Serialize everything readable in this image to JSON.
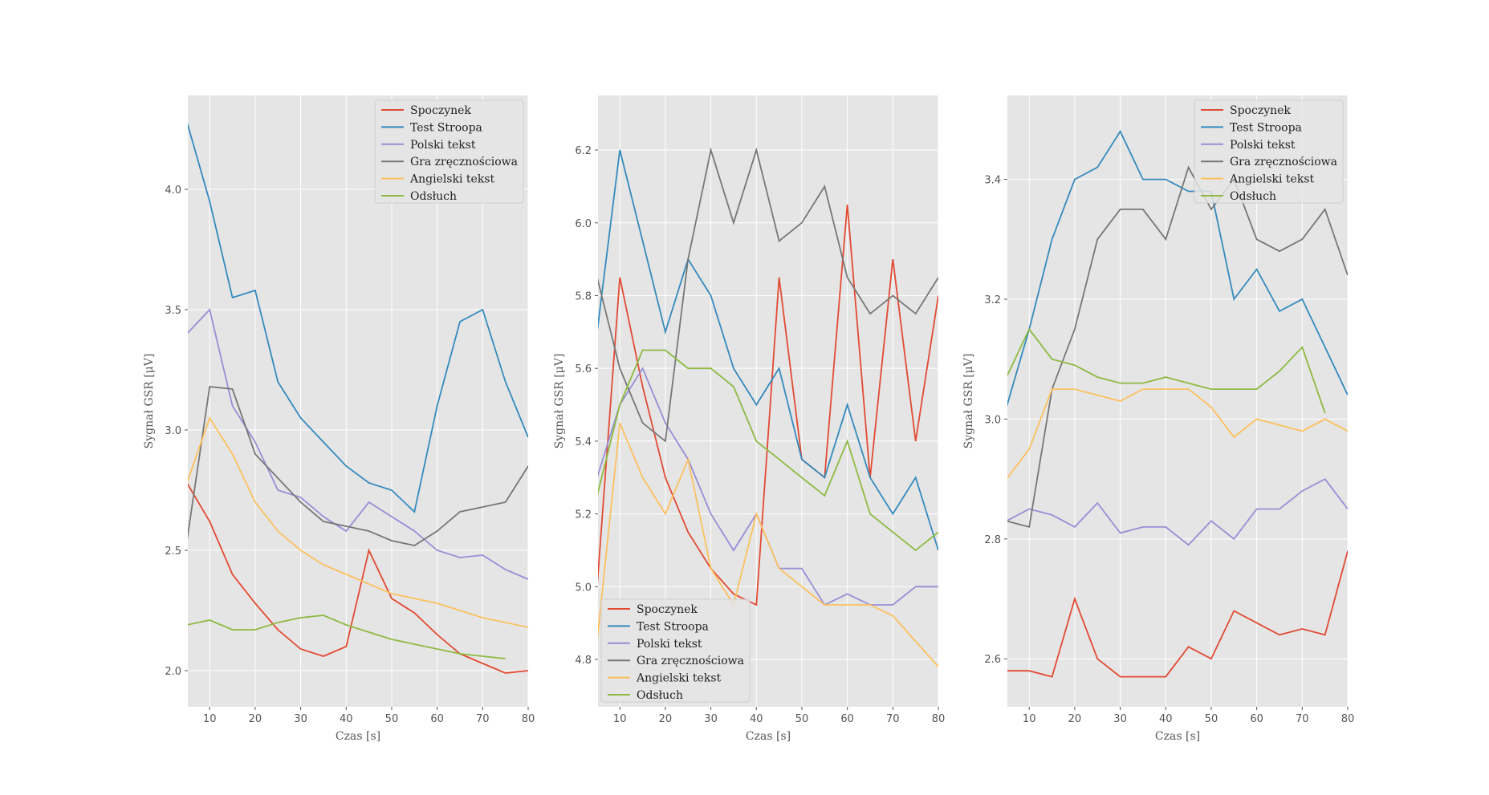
{
  "colors": [
    "#E24A33",
    "#348ABD",
    "#988ED5",
    "#777777",
    "#FBC15E",
    "#8EBA42"
  ],
  "chart_data": [
    {
      "type": "line",
      "xlabel": "Czas [s]",
      "ylabel": "Sygnał GSR [μV]",
      "xlim": [
        5.2,
        80
      ],
      "ylim": [
        1.85,
        4.39
      ],
      "xticks": [
        10,
        20,
        30,
        40,
        50,
        60,
        70,
        80
      ],
      "yticks": [
        2.0,
        2.5,
        3.0,
        3.5,
        4.0
      ],
      "ytick_labels": [
        "2.0",
        "2.5",
        "3.0",
        "3.5",
        "4.0"
      ],
      "grid": true,
      "legend": "top-right",
      "x": [
        5,
        10,
        15,
        20,
        25,
        30,
        35,
        40,
        45,
        50,
        55,
        60,
        65,
        70,
        75,
        80
      ],
      "series": [
        {
          "name": "Spoczynek",
          "values": [
            2.78,
            2.62,
            2.4,
            2.28,
            2.17,
            2.09,
            2.06,
            2.1,
            2.5,
            2.3,
            2.24,
            2.15,
            2.07,
            2.03,
            1.99,
            2.0
          ]
        },
        {
          "name": "Test Stroopa",
          "values": [
            4.28,
            3.95,
            3.55,
            3.58,
            3.2,
            3.05,
            2.95,
            2.85,
            2.78,
            2.75,
            2.66,
            3.1,
            3.45,
            3.5,
            3.2,
            2.97
          ]
        },
        {
          "name": "Polski tekst",
          "values": [
            3.4,
            3.5,
            3.1,
            2.95,
            2.75,
            2.72,
            2.64,
            2.58,
            2.7,
            2.64,
            2.58,
            2.5,
            2.47,
            2.48,
            2.42,
            2.38
          ]
        },
        {
          "name": "Gra zręcznościowa",
          "values": [
            2.54,
            3.18,
            3.17,
            2.9,
            2.8,
            2.7,
            2.62,
            2.6,
            2.58,
            2.54,
            2.52,
            2.58,
            2.66,
            2.68,
            2.7,
            2.85
          ]
        },
        {
          "name": "Angielski tekst",
          "values": [
            2.78,
            3.05,
            2.9,
            2.7,
            2.58,
            2.5,
            2.44,
            2.4,
            2.36,
            2.32,
            2.3,
            2.28,
            2.25,
            2.22,
            2.2,
            2.18
          ]
        },
        {
          "name": "Odsłuch",
          "values": [
            2.19,
            2.21,
            2.17,
            2.17,
            2.2,
            2.22,
            2.23,
            2.19,
            2.16,
            2.13,
            2.11,
            2.09,
            2.07,
            2.06,
            2.05,
            null
          ]
        }
      ]
    },
    {
      "type": "line",
      "xlabel": "Czas [s]",
      "ylabel": "Sygnał GSR [μV]",
      "xlim": [
        5.2,
        80
      ],
      "ylim": [
        4.67,
        6.35
      ],
      "xticks": [
        10,
        20,
        30,
        40,
        50,
        60,
        70,
        80
      ],
      "yticks": [
        4.8,
        5.0,
        5.2,
        5.4,
        5.6,
        5.8,
        6.0,
        6.2
      ],
      "ytick_labels": [
        "4.8",
        "5.0",
        "5.2",
        "5.4",
        "5.6",
        "5.8",
        "6.0",
        "6.2"
      ],
      "grid": true,
      "legend": "bottom-left",
      "x": [
        5,
        10,
        15,
        20,
        25,
        30,
        35,
        40,
        45,
        50,
        55,
        60,
        65,
        70,
        75,
        80
      ],
      "series": [
        {
          "name": "Spoczynek",
          "values": [
            5.0,
            5.85,
            5.55,
            5.3,
            5.15,
            5.05,
            4.98,
            4.95,
            5.85,
            5.35,
            5.3,
            6.05,
            5.3,
            5.9,
            5.4,
            5.8
          ]
        },
        {
          "name": "Test Stroopa",
          "values": [
            5.7,
            6.2,
            5.95,
            5.7,
            5.9,
            5.8,
            5.6,
            5.5,
            5.6,
            5.35,
            5.3,
            5.5,
            5.3,
            5.2,
            5.3,
            5.1
          ]
        },
        {
          "name": "Polski tekst",
          "values": [
            5.3,
            5.5,
            5.6,
            5.45,
            5.35,
            5.2,
            5.1,
            5.2,
            5.05,
            5.05,
            4.95,
            4.98,
            4.95,
            4.95,
            5.0,
            5.0
          ]
        },
        {
          "name": "Gra zręcznościowa",
          "values": [
            5.85,
            5.6,
            5.45,
            5.4,
            5.9,
            6.2,
            6.0,
            6.2,
            5.95,
            6.0,
            6.1,
            5.85,
            5.75,
            5.8,
            5.75,
            5.85
          ]
        },
        {
          "name": "Angielski tekst",
          "values": [
            4.85,
            5.45,
            5.3,
            5.2,
            5.35,
            5.05,
            4.95,
            5.2,
            5.05,
            5.0,
            4.95,
            4.95,
            4.95,
            4.92,
            4.85,
            4.78
          ]
        },
        {
          "name": "Odsłuch",
          "values": [
            5.25,
            5.5,
            5.65,
            5.65,
            5.6,
            5.6,
            5.55,
            5.4,
            5.35,
            5.3,
            5.25,
            5.4,
            5.2,
            5.15,
            5.1,
            5.15
          ]
        }
      ]
    },
    {
      "type": "line",
      "xlabel": "Czas [s]",
      "ylabel": "Sygnał GSR [μV]",
      "xlim": [
        5.2,
        80
      ],
      "ylim": [
        2.52,
        3.54
      ],
      "xticks": [
        10,
        20,
        30,
        40,
        50,
        60,
        70,
        80
      ],
      "yticks": [
        2.6,
        2.8,
        3.0,
        3.2,
        3.4
      ],
      "ytick_labels": [
        "2.6",
        "2.8",
        "3.0",
        "3.2",
        "3.4"
      ],
      "grid": true,
      "legend": "top-right",
      "x": [
        5,
        10,
        15,
        20,
        25,
        30,
        35,
        40,
        45,
        50,
        55,
        60,
        65,
        70,
        75,
        80
      ],
      "series": [
        {
          "name": "Spoczynek",
          "values": [
            2.58,
            2.58,
            2.57,
            2.7,
            2.6,
            2.57,
            2.57,
            2.57,
            2.62,
            2.6,
            2.68,
            2.66,
            2.64,
            2.65,
            2.64,
            2.78
          ]
        },
        {
          "name": "Test Stroopa",
          "values": [
            3.02,
            3.15,
            3.3,
            3.4,
            3.42,
            3.48,
            3.4,
            3.4,
            3.38,
            3.38,
            3.2,
            3.25,
            3.18,
            3.2,
            3.12,
            3.04
          ]
        },
        {
          "name": "Polski tekst",
          "values": [
            2.83,
            2.85,
            2.84,
            2.82,
            2.86,
            2.81,
            2.82,
            2.82,
            2.79,
            2.83,
            2.8,
            2.85,
            2.85,
            2.88,
            2.9,
            2.85
          ]
        },
        {
          "name": "Gra zręcznościowa",
          "values": [
            2.83,
            2.82,
            3.05,
            3.15,
            3.3,
            3.35,
            3.35,
            3.3,
            3.42,
            3.35,
            3.4,
            3.3,
            3.28,
            3.3,
            3.35,
            3.24
          ]
        },
        {
          "name": "Angielski tekst",
          "values": [
            2.9,
            2.95,
            3.05,
            3.05,
            3.04,
            3.03,
            3.05,
            3.05,
            3.05,
            3.02,
            2.97,
            3.0,
            2.99,
            2.98,
            3.0,
            2.98
          ]
        },
        {
          "name": "Odsłuch",
          "values": [
            3.07,
            3.15,
            3.1,
            3.09,
            3.07,
            3.06,
            3.06,
            3.07,
            3.06,
            3.05,
            3.05,
            3.05,
            3.08,
            3.12,
            3.01,
            null
          ]
        }
      ]
    }
  ]
}
